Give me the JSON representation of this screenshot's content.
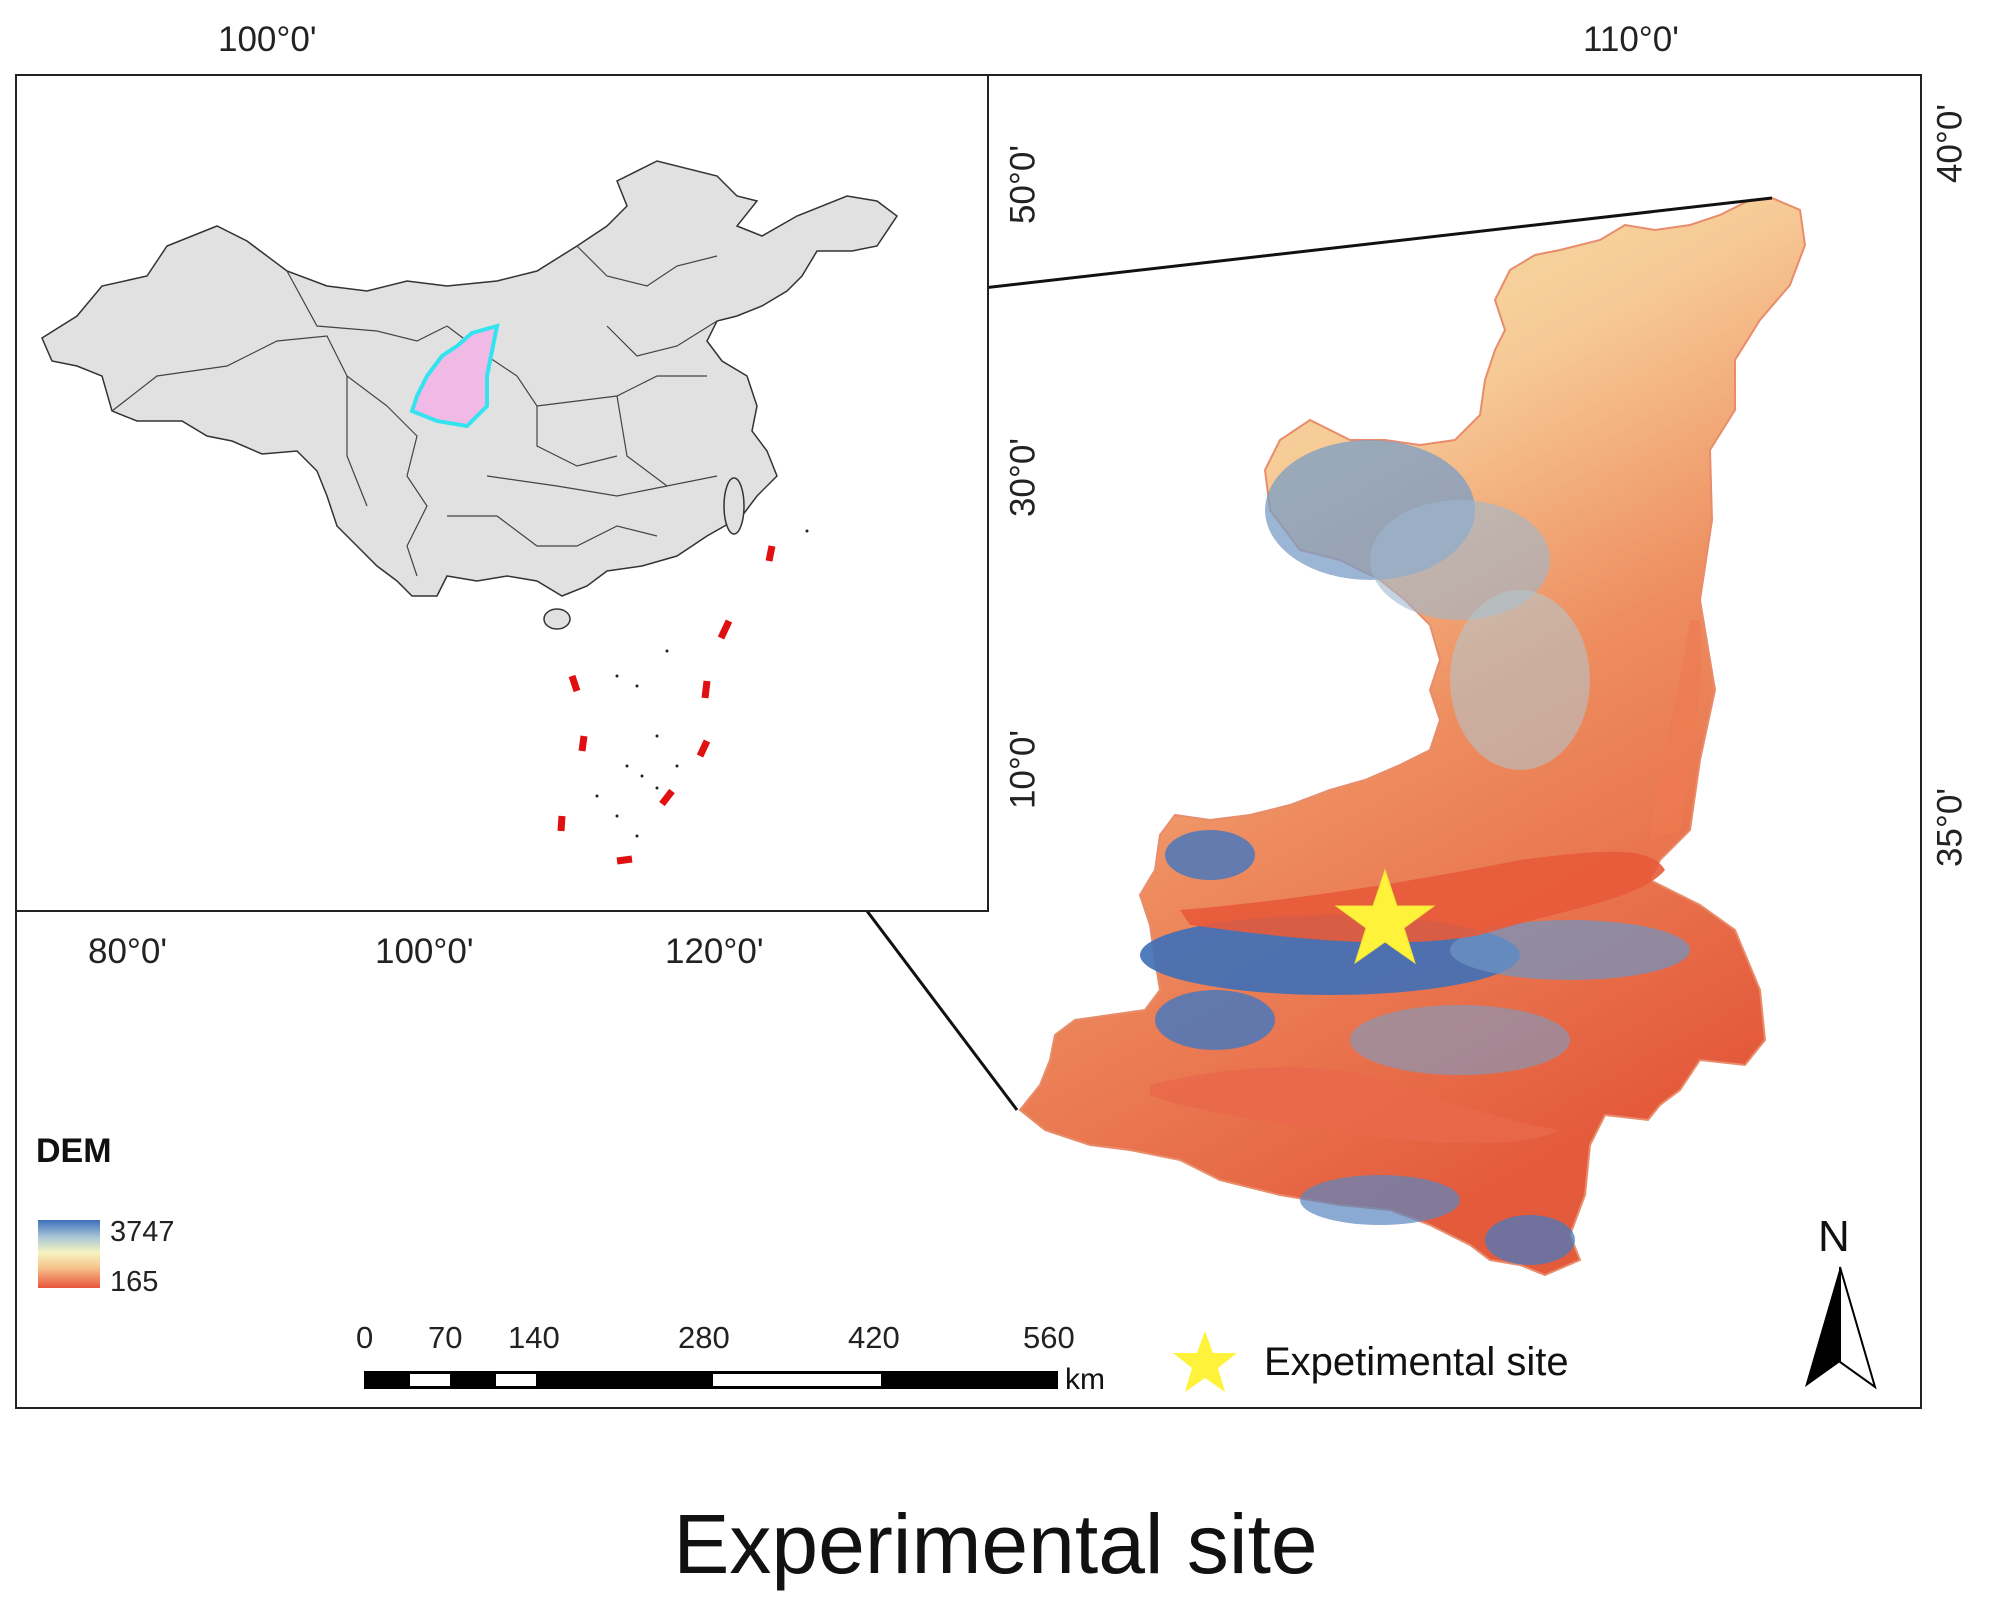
{
  "main_map": {
    "top_lon_labels": [
      "100°0'",
      "110°0'"
    ],
    "right_lat_labels": [
      "40°0'",
      "35°0'"
    ]
  },
  "inset_map": {
    "bottom_lon_labels": [
      "80°0'",
      "100°0'",
      "120°0'"
    ],
    "right_lat_labels": [
      "50°0'",
      "30°0'",
      "10°0'"
    ],
    "highlight_fill": "#f1b9e6",
    "highlight_outline": "#33e3f0",
    "dashed_line_color": "#e01010"
  },
  "legend": {
    "title": "DEM",
    "high_value": "3747",
    "low_value": "165",
    "ramp_colors": [
      "#3e6fb8",
      "#a9c6d8",
      "#f6f4c0",
      "#f7c38c",
      "#e9553c"
    ]
  },
  "scale_bar": {
    "ticks": [
      "0",
      "70",
      "140",
      "280",
      "420",
      "560"
    ],
    "unit": "km"
  },
  "site_legend": {
    "label": "Expetimental site",
    "star_color": "#fff23a"
  },
  "north_arrow": {
    "letter": "N"
  },
  "caption": "Experimental site"
}
